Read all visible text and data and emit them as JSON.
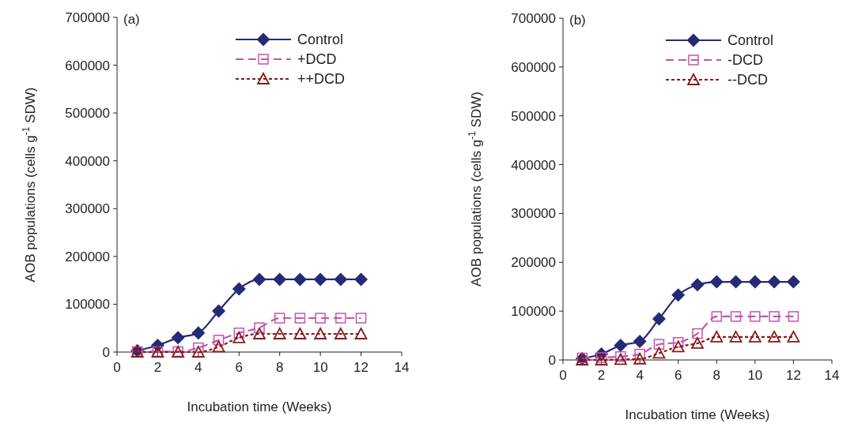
{
  "chart_data": [
    {
      "type": "line",
      "title": "(a)",
      "xlabel": "Incubation time (Weeks)",
      "ylabel": "AOB populations  (cells g$^{-1}$ SDW)",
      "x": [
        1,
        2,
        3,
        4,
        5,
        6,
        7,
        8,
        9,
        10,
        11,
        12
      ],
      "xlim": [
        0,
        14
      ],
      "xticks": [
        0,
        2,
        4,
        6,
        8,
        10,
        12,
        14
      ],
      "ylim": [
        0,
        700000
      ],
      "yticks": [
        0,
        100000,
        200000,
        300000,
        400000,
        500000,
        600000,
        700000
      ],
      "grid": false,
      "legend": "top right",
      "series": [
        {
          "name": "Control",
          "color": "#252a75",
          "marker": "diamond",
          "line_style": "solid",
          "values": [
            3000,
            14000,
            30000,
            40000,
            86000,
            132000,
            152000,
            152000,
            152000,
            152000,
            152000,
            152000
          ]
        },
        {
          "name": "+DCD",
          "color": "#c455ae",
          "marker": "square",
          "line_style": "dashed",
          "values": [
            1000,
            1000,
            1000,
            9000,
            25000,
            40000,
            51000,
            71000,
            71000,
            71000,
            71000,
            71000
          ]
        },
        {
          "name": "++DCD",
          "color": "#8b1a1a",
          "marker": "triangle",
          "line_style": "dotted",
          "values": [
            0,
            0,
            0,
            0,
            11000,
            30000,
            38000,
            38000,
            38000,
            38000,
            38000,
            38000
          ]
        }
      ]
    },
    {
      "type": "line",
      "title": "(b)",
      "xlabel": "Incubation time (Weeks)",
      "ylabel": "AOB populations (cells g$^{-1}$ SDW)",
      "x": [
        1,
        2,
        3,
        4,
        5,
        6,
        7,
        8,
        9,
        10,
        11,
        12
      ],
      "xlim": [
        0,
        14
      ],
      "xticks": [
        0,
        2,
        4,
        6,
        8,
        10,
        12,
        14
      ],
      "ylim": [
        0,
        700000
      ],
      "yticks": [
        0,
        100000,
        200000,
        300000,
        400000,
        500000,
        600000,
        700000
      ],
      "grid": false,
      "legend": "top right",
      "series": [
        {
          "name": "Control",
          "color": "#252a75",
          "marker": "diamond",
          "line_style": "solid",
          "values": [
            3000,
            12000,
            30000,
            38000,
            84000,
            133000,
            154000,
            160000,
            160000,
            160000,
            160000,
            160000
          ]
        },
        {
          "name": "-DCD",
          "color": "#c455ae",
          "marker": "square",
          "line_style": "dashed",
          "values": [
            4000,
            5000,
            7000,
            12000,
            32000,
            36000,
            54000,
            89000,
            89000,
            89000,
            89000,
            89000
          ]
        },
        {
          "name": "--DCD",
          "color": "#8b1a1a",
          "marker": "triangle",
          "line_style": "dotted",
          "values": [
            0,
            0,
            1000,
            2000,
            14000,
            27000,
            34000,
            47000,
            47000,
            47000,
            47000,
            47000
          ]
        }
      ]
    }
  ]
}
